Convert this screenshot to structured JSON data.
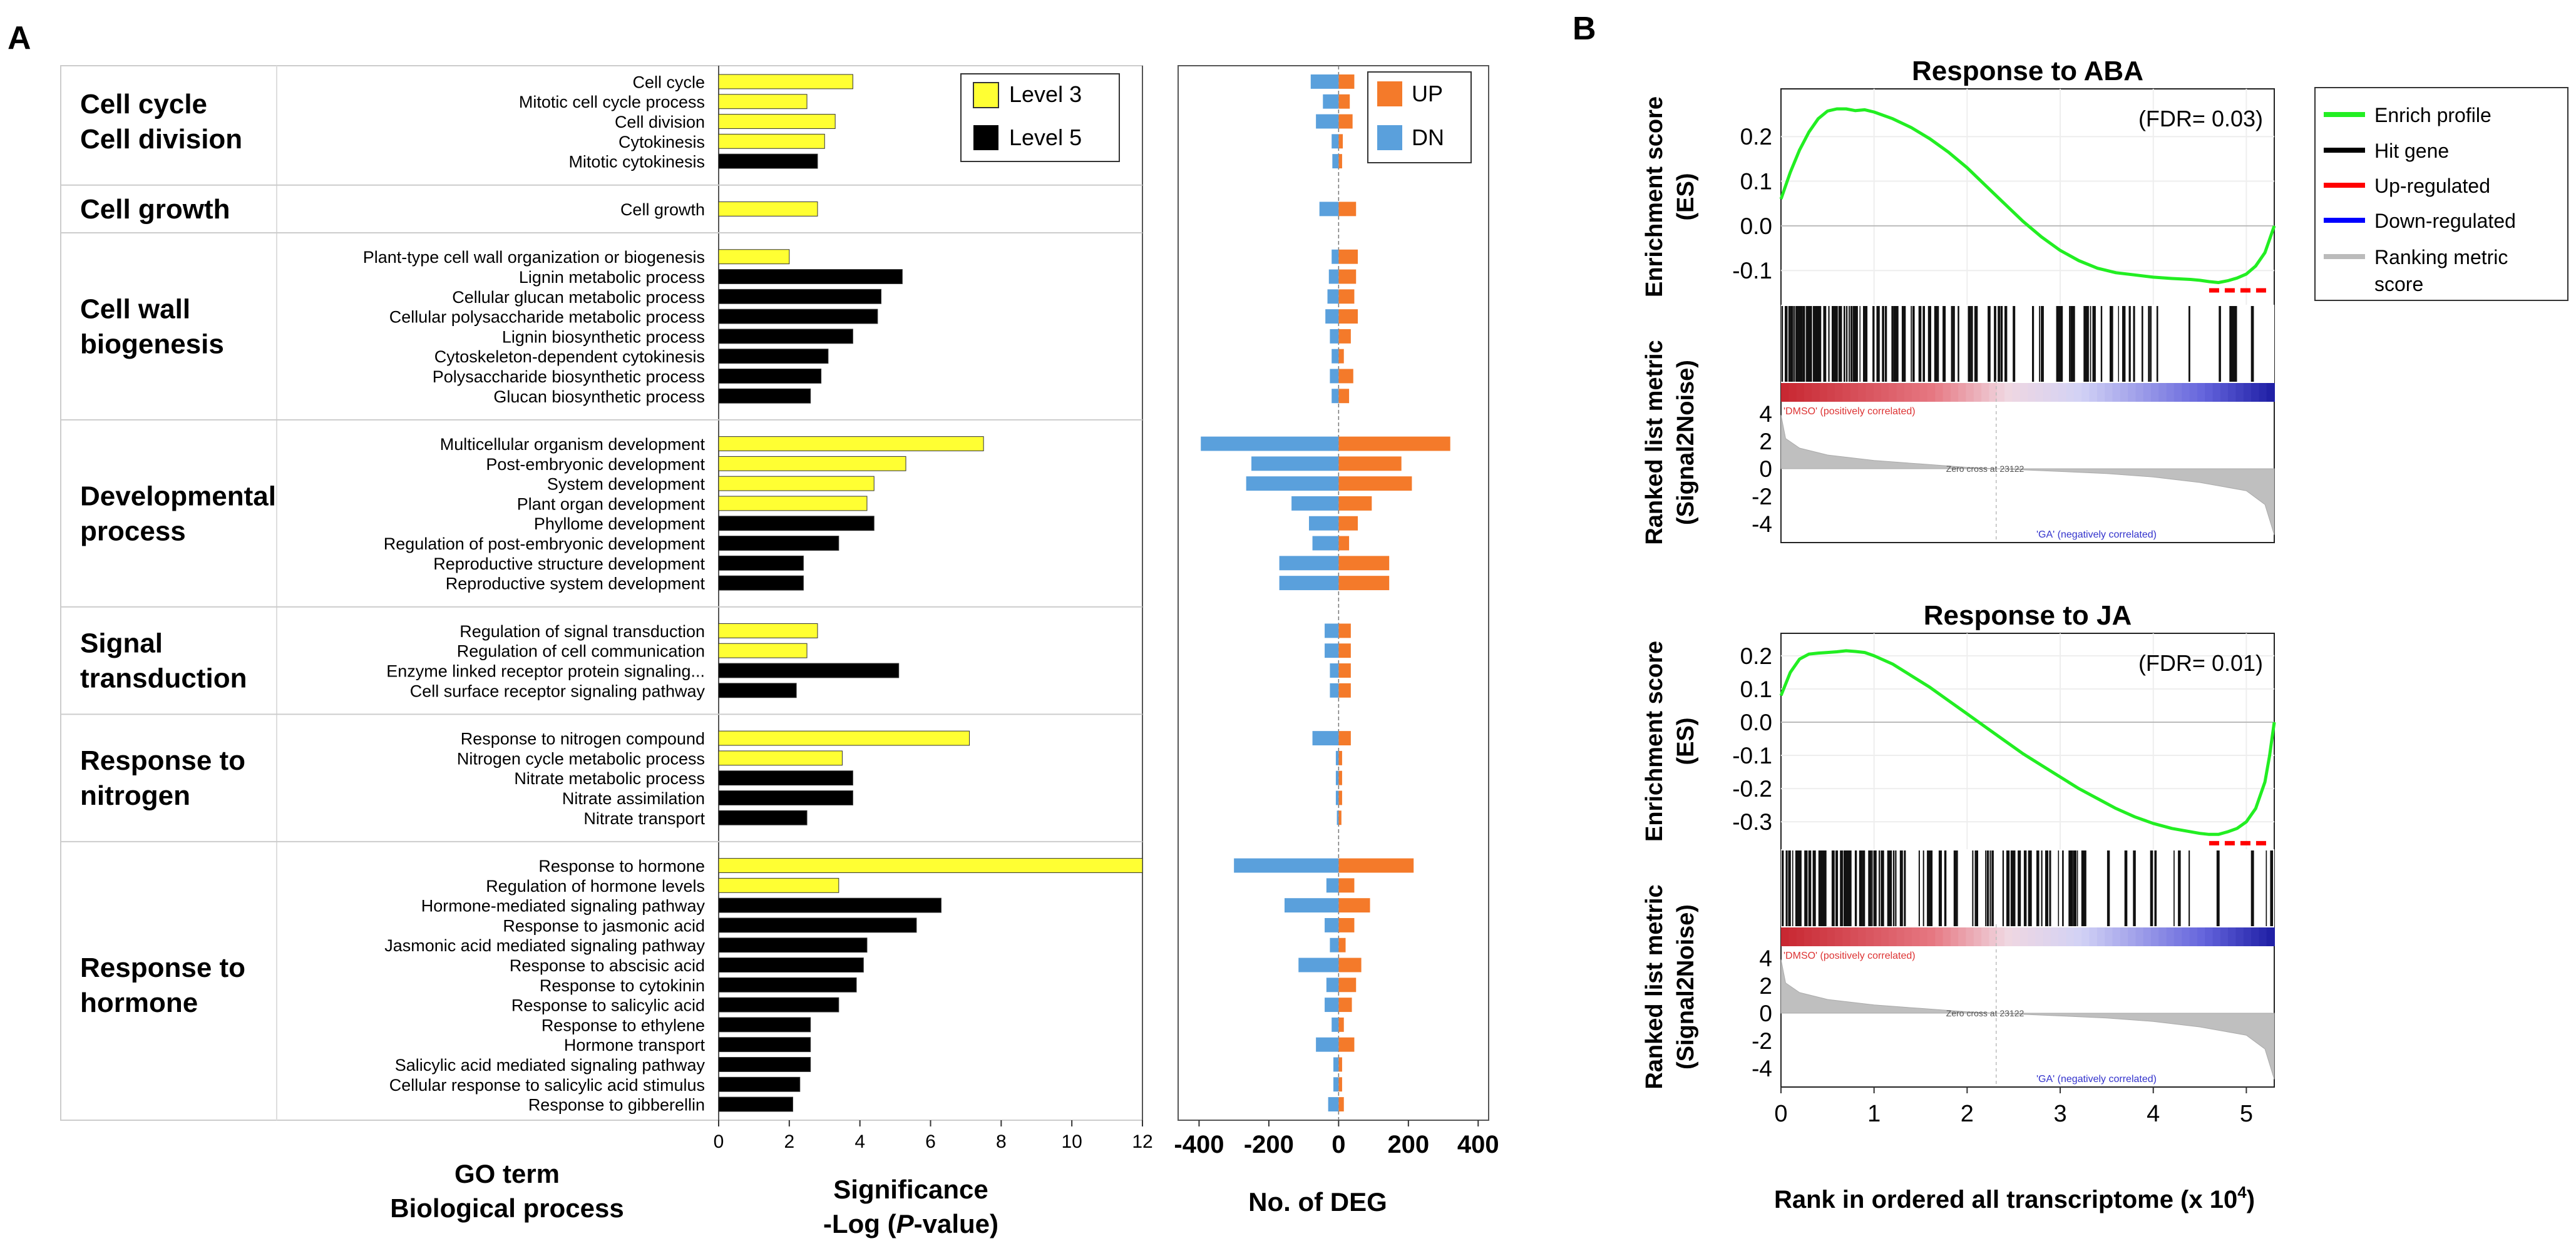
{
  "panel_a": {
    "label": "A",
    "go_axis_title": [
      "GO term",
      "Biological process"
    ],
    "sig_axis_title": [
      "Significance",
      "-Log (",
      "P",
      "-value)"
    ],
    "deg_axis_title": "No. of DEG",
    "legend_level": [
      {
        "label": "Level 3",
        "color": "#ffff33"
      },
      {
        "label": "Level 5",
        "color": "#000000"
      }
    ],
    "legend_deg": [
      {
        "label": "UP",
        "color": "#f47a2a"
      },
      {
        "label": "DN",
        "color": "#5aa0dc"
      }
    ]
  },
  "panel_b": {
    "label": "B",
    "x_axis_title": "Rank in ordered all transcriptome (x 10",
    "x_axis_exp": "4",
    "x_axis_close": ")",
    "es_axis_title": [
      "Enrichment score",
      "(ES)"
    ],
    "rank_axis_title": [
      "Ranked list metric",
      "(Signal2Noise)"
    ],
    "annot_dmso": "'DMSO' (positively correlated)",
    "annot_ga": "'GA' (negatively correlated)",
    "annot_zero": "Zero cross at 23122",
    "legend": [
      {
        "label": "Enrich profile",
        "color": "#22ee22"
      },
      {
        "label": "Hit gene",
        "color": "#000000"
      },
      {
        "label": "Up-regulated",
        "color": "#ff0000"
      },
      {
        "label": "Down-regulated",
        "color": "#0000ff"
      },
      {
        "label": "Ranking metric",
        "label2": "score",
        "color": "#bbbbbb"
      }
    ]
  },
  "chart_data": [
    {
      "type": "bar",
      "orientation": "horizontal",
      "title": "Significance",
      "xlabel": "Significance -Log (P-value)",
      "ylabel": "GO term Biological process",
      "xlim": [
        0,
        12
      ],
      "xticks": [
        0,
        2,
        4,
        6,
        8,
        10,
        12
      ],
      "groups": [
        {
          "name": [
            "Cell cycle",
            "Cell division"
          ],
          "terms": [
            {
              "term": "Cell cycle",
              "sig": 3.8,
              "level": 3,
              "up": 45,
              "dn": -80
            },
            {
              "term": "Mitotic cell cycle process",
              "sig": 2.5,
              "level": 3,
              "up": 32,
              "dn": -45
            },
            {
              "term": "Cell division",
              "sig": 3.3,
              "level": 3,
              "up": 40,
              "dn": -65
            },
            {
              "term": "Cytokinesis",
              "sig": 3.0,
              "level": 3,
              "up": 12,
              "dn": -20
            },
            {
              "term": "Mitotic cytokinesis",
              "sig": 2.8,
              "level": 5,
              "up": 10,
              "dn": -18
            }
          ]
        },
        {
          "name": [
            "Cell growth"
          ],
          "terms": [
            {
              "term": "Cell growth",
              "sig": 2.8,
              "level": 3,
              "up": 50,
              "dn": -55
            }
          ]
        },
        {
          "name": [
            "Cell wall",
            "biogenesis"
          ],
          "terms": [
            {
              "term": "Plant-type cell wall organization or biogenesis",
              "sig": 2.0,
              "level": 3,
              "up": 55,
              "dn": -20
            },
            {
              "term": "Lignin metabolic process",
              "sig": 5.2,
              "level": 5,
              "up": 50,
              "dn": -28
            },
            {
              "term": "Cellular glucan metabolic process",
              "sig": 4.6,
              "level": 5,
              "up": 45,
              "dn": -32
            },
            {
              "term": "Cellular polysaccharide metabolic process",
              "sig": 4.5,
              "level": 5,
              "up": 55,
              "dn": -38
            },
            {
              "term": "Lignin biosynthetic process",
              "sig": 3.8,
              "level": 5,
              "up": 35,
              "dn": -25
            },
            {
              "term": "Cytoskeleton-dependent cytokinesis",
              "sig": 3.1,
              "level": 5,
              "up": 15,
              "dn": -20
            },
            {
              "term": "Polysaccharide biosynthetic process",
              "sig": 2.9,
              "level": 5,
              "up": 42,
              "dn": -25
            },
            {
              "term": "Glucan biosynthetic process",
              "sig": 2.6,
              "level": 5,
              "up": 30,
              "dn": -20
            }
          ]
        },
        {
          "name": [
            "Developmental",
            "process"
          ],
          "terms": [
            {
              "term": "Multicellular organism development",
              "sig": 7.5,
              "level": 3,
              "up": 320,
              "dn": -395
            },
            {
              "term": "Post-embryonic development",
              "sig": 5.3,
              "level": 3,
              "up": 180,
              "dn": -250
            },
            {
              "term": "System development",
              "sig": 4.4,
              "level": 3,
              "up": 210,
              "dn": -265
            },
            {
              "term": "Plant organ development",
              "sig": 4.2,
              "level": 3,
              "up": 95,
              "dn": -135
            },
            {
              "term": "Phyllome development",
              "sig": 4.4,
              "level": 5,
              "up": 55,
              "dn": -85
            },
            {
              "term": "Regulation of post-embryonic development",
              "sig": 3.4,
              "level": 5,
              "up": 30,
              "dn": -75
            },
            {
              "term": "Reproductive structure development",
              "sig": 2.4,
              "level": 5,
              "up": 145,
              "dn": -170
            },
            {
              "term": "Reproductive system development",
              "sig": 2.4,
              "level": 5,
              "up": 145,
              "dn": -170
            }
          ]
        },
        {
          "name": [
            "Signal",
            "transduction"
          ],
          "terms": [
            {
              "term": "Regulation of signal transduction",
              "sig": 2.8,
              "level": 3,
              "up": 35,
              "dn": -40
            },
            {
              "term": "Regulation of cell communication",
              "sig": 2.5,
              "level": 3,
              "up": 35,
              "dn": -40
            },
            {
              "term": "Enzyme linked receptor protein signaling...",
              "sig": 5.1,
              "level": 5,
              "up": 35,
              "dn": -25
            },
            {
              "term": "Cell surface receptor signaling pathway",
              "sig": 2.2,
              "level": 5,
              "up": 35,
              "dn": -25
            }
          ]
        },
        {
          "name": [
            "Response to",
            "nitrogen"
          ],
          "terms": [
            {
              "term": "Response to nitrogen compound",
              "sig": 7.1,
              "level": 3,
              "up": 35,
              "dn": -75
            },
            {
              "term": "Nitrogen cycle metabolic process",
              "sig": 3.5,
              "level": 3,
              "up": 10,
              "dn": -8
            },
            {
              "term": "Nitrate metabolic process",
              "sig": 3.8,
              "level": 5,
              "up": 10,
              "dn": -8
            },
            {
              "term": "Nitrate assimilation",
              "sig": 3.8,
              "level": 5,
              "up": 10,
              "dn": -8
            },
            {
              "term": "Nitrate transport",
              "sig": 2.5,
              "level": 5,
              "up": 8,
              "dn": -5
            }
          ]
        },
        {
          "name": [
            "Response to",
            "hormone"
          ],
          "terms": [
            {
              "term": "Response to hormone",
              "sig": 12,
              "level": 3,
              "up": 215,
              "dn": -300
            },
            {
              "term": "Regulation of hormone levels",
              "sig": 3.4,
              "level": 3,
              "up": 45,
              "dn": -35
            },
            {
              "term": "Hormone-mediated signaling pathway",
              "sig": 6.3,
              "level": 5,
              "up": 90,
              "dn": -155
            },
            {
              "term": "Response to jasmonic acid",
              "sig": 5.6,
              "level": 5,
              "up": 45,
              "dn": -40
            },
            {
              "term": "Jasmonic acid mediated signaling pathway",
              "sig": 4.2,
              "level": 5,
              "up": 20,
              "dn": -25
            },
            {
              "term": "Response to abscisic acid",
              "sig": 4.1,
              "level": 5,
              "up": 65,
              "dn": -115
            },
            {
              "term": "Response to cytokinin",
              "sig": 3.9,
              "level": 5,
              "up": 50,
              "dn": -35
            },
            {
              "term": "Response to salicylic acid",
              "sig": 3.4,
              "level": 5,
              "up": 38,
              "dn": -40
            },
            {
              "term": "Response to ethylene",
              "sig": 2.6,
              "level": 5,
              "up": 15,
              "dn": -20
            },
            {
              "term": "Hormone transport",
              "sig": 2.6,
              "level": 5,
              "up": 45,
              "dn": -65
            },
            {
              "term": "Salicylic acid mediated signaling pathway",
              "sig": 2.6,
              "level": 5,
              "up": 10,
              "dn": -15
            },
            {
              "term": "Cellular response to salicylic acid stimulus",
              "sig": 2.3,
              "level": 5,
              "up": 10,
              "dn": -15
            },
            {
              "term": "Response to gibberellin",
              "sig": 2.1,
              "level": 5,
              "up": 15,
              "dn": -30
            }
          ]
        }
      ]
    },
    {
      "type": "bar",
      "orientation": "horizontal",
      "title": "No. of DEG",
      "xlabel": "No. of DEG",
      "series": [
        {
          "name": "UP",
          "field": "up"
        },
        {
          "name": "DN",
          "field": "dn"
        }
      ],
      "xlim": [
        -460,
        430
      ],
      "xticks": [
        -400,
        -200,
        0,
        200,
        400
      ],
      "xtick_labels": [
        "-400",
        "-200",
        "0",
        "200",
        "400"
      ]
    },
    {
      "type": "line",
      "title": "Response to ABA",
      "fdr_label": "(FDR= 0.03)",
      "xlim": [
        0,
        5.3
      ],
      "ylim": [
        -0.16,
        0.29
      ],
      "yticks": [
        0.2,
        0.1,
        0.0,
        -0.1
      ],
      "ytick_labels": [
        "0.2",
        "0.1",
        "0.0",
        "-0.1"
      ],
      "x": [
        0,
        0.1,
        0.2,
        0.3,
        0.4,
        0.5,
        0.6,
        0.7,
        0.8,
        0.9,
        1.0,
        1.2,
        1.4,
        1.6,
        1.8,
        2.0,
        2.2,
        2.4,
        2.6,
        2.8,
        3.0,
        3.2,
        3.4,
        3.6,
        3.8,
        4.0,
        4.2,
        4.4,
        4.5,
        4.6,
        4.7,
        4.8,
        4.9,
        5.0,
        5.1,
        5.2,
        5.25,
        5.3
      ],
      "y": [
        0.06,
        0.12,
        0.17,
        0.21,
        0.24,
        0.257,
        0.262,
        0.262,
        0.258,
        0.26,
        0.255,
        0.24,
        0.22,
        0.195,
        0.165,
        0.13,
        0.09,
        0.05,
        0.01,
        -0.025,
        -0.055,
        -0.078,
        -0.095,
        -0.105,
        -0.11,
        -0.115,
        -0.118,
        -0.12,
        -0.122,
        -0.125,
        -0.127,
        -0.123,
        -0.117,
        -0.108,
        -0.09,
        -0.06,
        -0.03,
        0.0
      ],
      "up_regulated_hits": [
        4.6,
        5.25
      ]
    },
    {
      "type": "line",
      "title": "Response to JA",
      "fdr_label": "(FDR= 0.01)",
      "xlim": [
        0,
        5.3
      ],
      "ylim": [
        -0.36,
        0.245
      ],
      "yticks": [
        0.2,
        0.1,
        0.0,
        -0.1,
        -0.2,
        -0.3
      ],
      "ytick_labels": [
        "0.2",
        "0.1",
        "0.0",
        "-0.1",
        "-0.2",
        "-0.3"
      ],
      "x": [
        0,
        0.1,
        0.2,
        0.3,
        0.4,
        0.5,
        0.6,
        0.7,
        0.8,
        0.9,
        1.0,
        1.2,
        1.4,
        1.6,
        1.8,
        2.0,
        2.2,
        2.4,
        2.6,
        2.8,
        3.0,
        3.2,
        3.4,
        3.6,
        3.8,
        4.0,
        4.2,
        4.4,
        4.5,
        4.6,
        4.7,
        4.8,
        4.9,
        5.0,
        5.1,
        5.2,
        5.25,
        5.3
      ],
      "y": [
        0.08,
        0.15,
        0.19,
        0.205,
        0.208,
        0.21,
        0.212,
        0.215,
        0.213,
        0.21,
        0.2,
        0.175,
        0.14,
        0.105,
        0.065,
        0.025,
        -0.015,
        -0.055,
        -0.095,
        -0.13,
        -0.165,
        -0.2,
        -0.23,
        -0.26,
        -0.285,
        -0.305,
        -0.32,
        -0.33,
        -0.335,
        -0.338,
        -0.338,
        -0.33,
        -0.32,
        -0.3,
        -0.26,
        -0.18,
        -0.1,
        0.0
      ],
      "up_regulated_hits": [
        4.6,
        5.25
      ]
    },
    {
      "type": "area",
      "title": "Ranked list metric (Signal2Noise)",
      "xlim": [
        0,
        5.3
      ],
      "ylim": [
        -5,
        4.5
      ],
      "yticks": [
        4,
        2,
        0,
        -2,
        -4
      ],
      "ytick_labels": [
        "4",
        "2",
        "0",
        "-2",
        "-4"
      ],
      "xticks": [
        0,
        1,
        2,
        3,
        4,
        5
      ],
      "xtick_labels": [
        "0",
        "1",
        "2",
        "3",
        "4",
        "5"
      ],
      "x": [
        0,
        0.05,
        0.2,
        0.5,
        1.0,
        1.5,
        2.0,
        2.3122,
        3.0,
        3.5,
        4.0,
        4.5,
        5.0,
        5.2,
        5.3
      ],
      "y": [
        3.9,
        2.2,
        1.5,
        1.0,
        0.6,
        0.35,
        0.1,
        0.0,
        -0.2,
        -0.35,
        -0.6,
        -1.0,
        -1.6,
        -2.6,
        -4.8
      ],
      "zero_cross": 2.3122
    }
  ]
}
